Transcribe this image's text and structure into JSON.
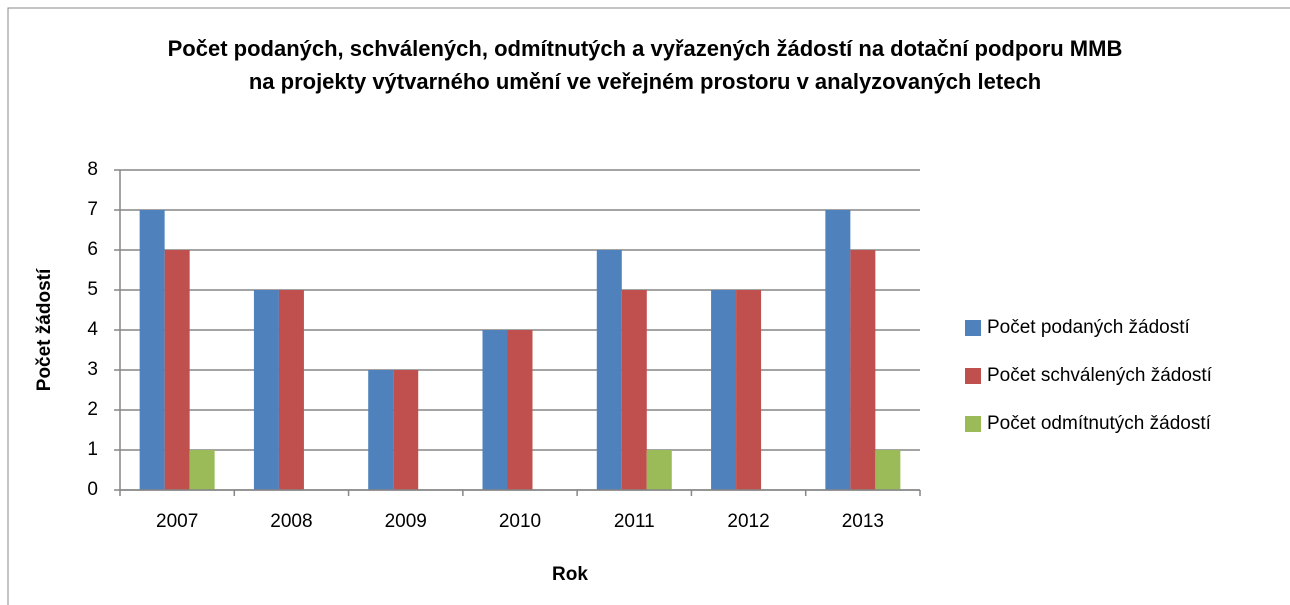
{
  "chart_data": {
    "type": "bar",
    "title": "Počet podaných, schválených, odmítnutých a vyřazených  žádostí na dotační podporu MMB  na projekty výtvarného umění ve veřejném prostoru v analyzovaných letech",
    "x_label": "Rok",
    "y_label": "Počet žádostí",
    "categories": [
      "2007",
      "2008",
      "2009",
      "2010",
      "2011",
      "2012",
      "2013"
    ],
    "series": [
      {
        "name": "Počet podaných žádostí",
        "color": "#4f81bd",
        "values": [
          7,
          5,
          3,
          4,
          6,
          5,
          7
        ]
      },
      {
        "name": "Počet schválených žádostí",
        "color": "#c0504d",
        "values": [
          6,
          5,
          3,
          4,
          5,
          5,
          6
        ]
      },
      {
        "name": "Počet odmítnutých žádostí",
        "color": "#9bbb59",
        "values": [
          1,
          0,
          0,
          0,
          1,
          0,
          1
        ]
      }
    ],
    "ylim": [
      0,
      8
    ],
    "yticks": [
      0,
      1,
      2,
      3,
      4,
      5,
      6,
      7,
      8
    ],
    "grid": true,
    "legend": "right"
  }
}
